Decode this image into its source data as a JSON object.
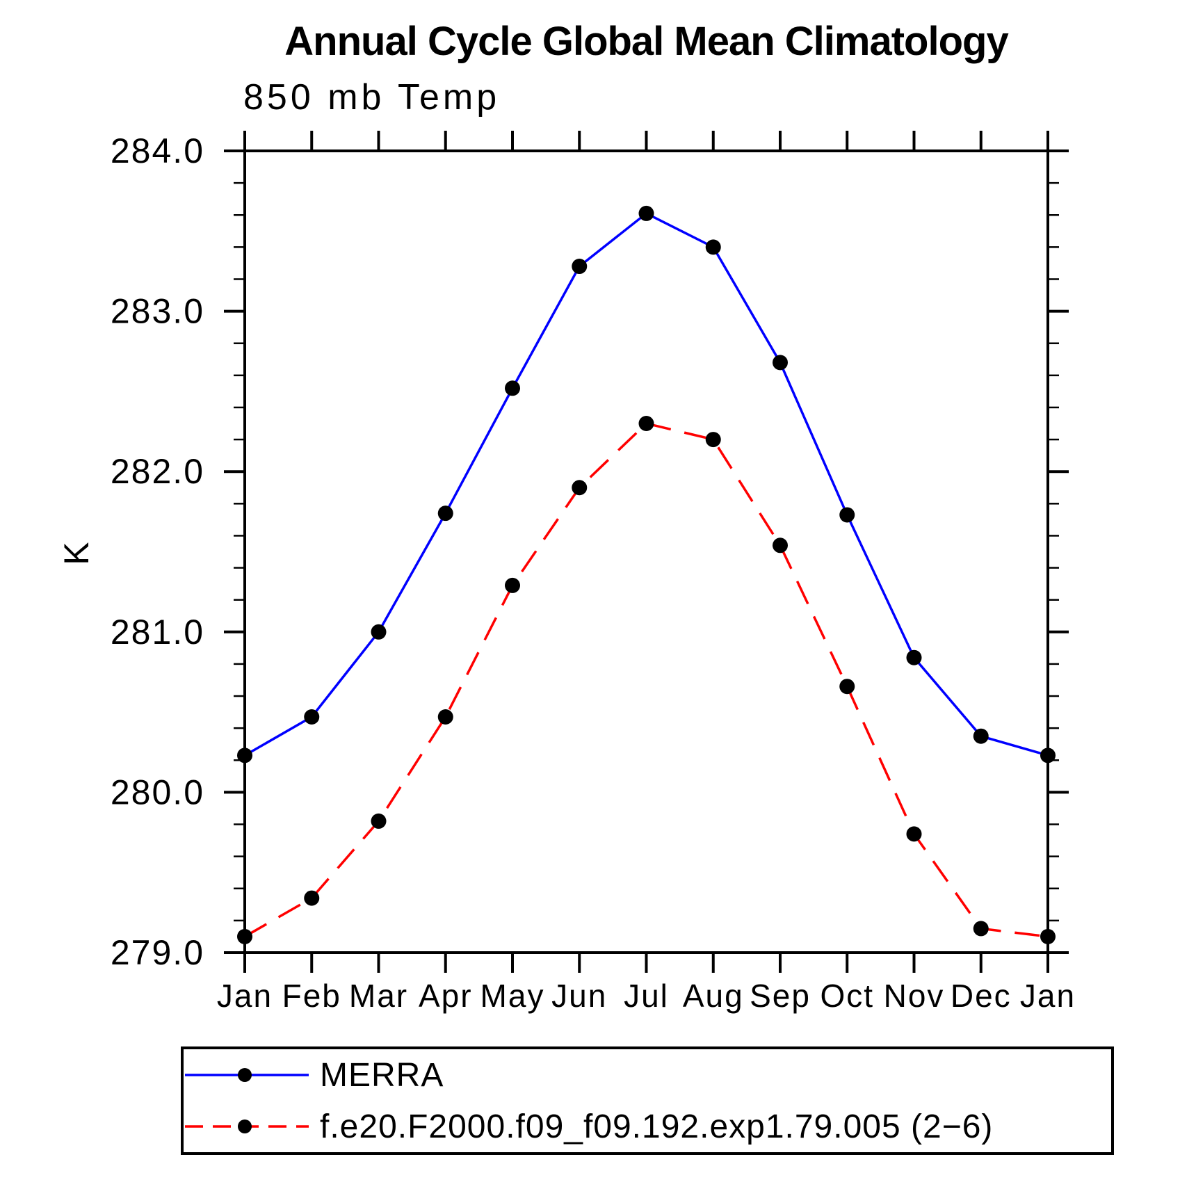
{
  "header": {
    "title": "Annual Cycle Global Mean Climatology"
  },
  "chart_data": {
    "type": "line",
    "title": "Annual Cycle Global Mean Climatology",
    "subtitle_left": "850 mb Temp",
    "ylabel": "K",
    "xlabel": "",
    "x_labels": [
      "Jan",
      "Feb",
      "Mar",
      "Apr",
      "May",
      "Jun",
      "Jul",
      "Aug",
      "Sep",
      "Oct",
      "Nov",
      "Dec",
      "Jan"
    ],
    "ylim": [
      279.0,
      284.0
    ],
    "ytick_labels": [
      "279.0",
      "280.0",
      "281.0",
      "282.0",
      "283.0",
      "284.0"
    ],
    "ytick_minor_step": 0.2,
    "grid": false,
    "legend_position": "bottom-left-box",
    "axis_color": "#000000",
    "marker_color": "#000000",
    "series": [
      {
        "name": "MERRA",
        "color": "#0000ff",
        "style": "solid",
        "marker": "circle",
        "values": [
          280.23,
          280.47,
          281.0,
          281.74,
          282.52,
          283.28,
          283.61,
          283.4,
          282.68,
          281.73,
          280.84,
          280.35,
          280.23
        ]
      },
      {
        "name": "f.e20.F2000.f09_f09.192.exp1.79.005 (2−6)",
        "color": "#ff0000",
        "style": "dashed",
        "marker": "circle",
        "values": [
          279.1,
          279.34,
          279.82,
          280.47,
          281.29,
          281.9,
          282.3,
          282.2,
          281.54,
          280.66,
          279.74,
          279.15,
          279.1
        ]
      }
    ]
  }
}
